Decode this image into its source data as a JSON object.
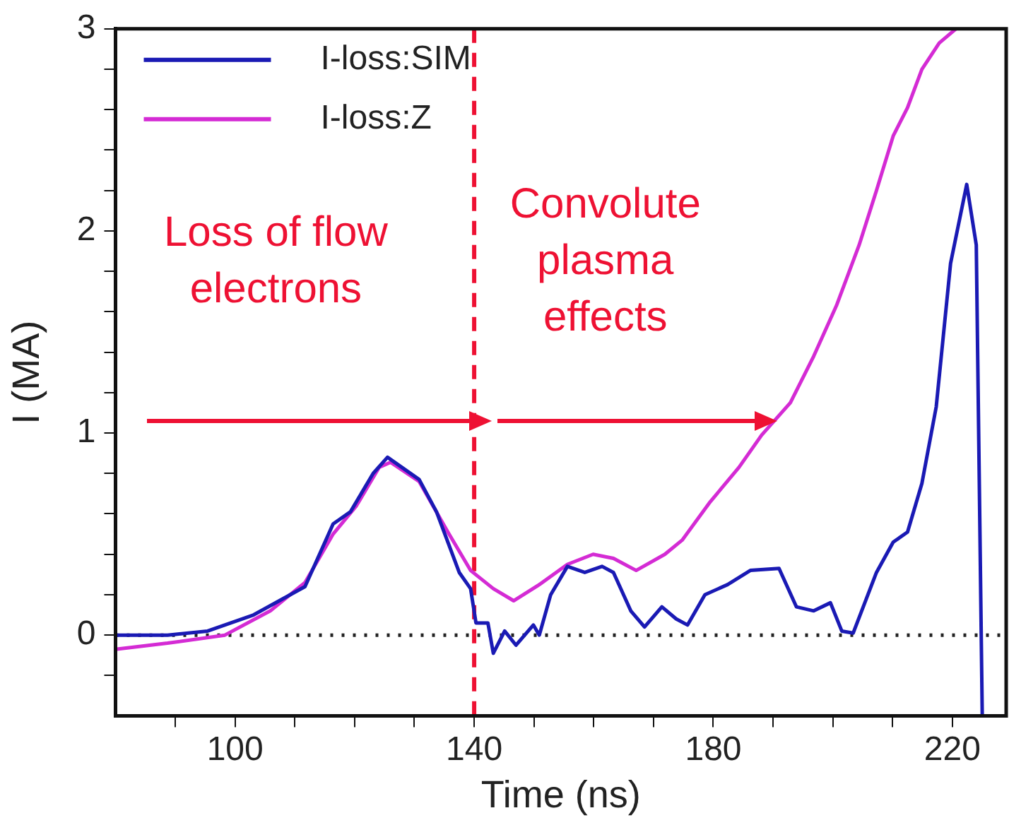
{
  "chart_data": {
    "type": "line",
    "xlabel": "Time (ns)",
    "ylabel": "I (MA)",
    "xlim": [
      80,
      229
    ],
    "ylim": [
      -0.4,
      3
    ],
    "xticks": [
      {
        "value": 90,
        "label": null
      },
      100,
      {
        "value": 110,
        "label": null
      },
      {
        "value": 120,
        "label": null
      },
      {
        "value": 130,
        "label": null
      },
      140,
      {
        "value": 150,
        "label": null
      },
      {
        "value": 160,
        "label": null
      },
      {
        "value": 170,
        "label": null
      },
      180,
      {
        "value": 190,
        "label": null
      },
      {
        "value": 200,
        "label": null
      },
      {
        "value": 210,
        "label": null
      },
      220
    ],
    "yticks": [
      {
        "value": -0.2,
        "label": null
      },
      0,
      {
        "value": 0.2,
        "label": null
      },
      {
        "value": 0.4,
        "label": null
      },
      {
        "value": 0.6,
        "label": null
      },
      {
        "value": 0.8,
        "label": null
      },
      1,
      {
        "value": 1.2,
        "label": null
      },
      {
        "value": 1.4,
        "label": null
      },
      {
        "value": 1.6,
        "label": null
      },
      {
        "value": 1.8,
        "label": null
      },
      2,
      {
        "value": 2.2,
        "label": null
      },
      {
        "value": 2.4,
        "label": null
      },
      {
        "value": 2.6,
        "label": null
      },
      {
        "value": 2.8,
        "label": null
      },
      3
    ],
    "grid": false,
    "legend": "top left",
    "marker": "none",
    "series": [
      {
        "name": "I-loss:SIM",
        "color": "#1a1ab4",
        "x": [
          80,
          88.7,
          95.4,
          103.1,
          111.7,
          116.4,
          119.3,
          123.1,
          125.5,
          130.8,
          133.7,
          137.5,
          139.4,
          140.3,
          142.3,
          143.2,
          145.1,
          147,
          149.9,
          150.9,
          152.8,
          155.6,
          158.5,
          161.4,
          163.3,
          166.2,
          168.5,
          171.4,
          173.8,
          175.7,
          178.6,
          182.4,
          186.2,
          191,
          193.9,
          196.8,
          199.6,
          201.5,
          203.4,
          207.3,
          210.1,
          212.5,
          214.9,
          217.3,
          219.7,
          222.4,
          224,
          225
        ],
        "values": [
          0,
          0,
          0.02,
          0.1,
          0.24,
          0.55,
          0.61,
          0.8,
          0.88,
          0.77,
          0.61,
          0.31,
          0.23,
          0.06,
          0.06,
          -0.09,
          0.02,
          -0.05,
          0.05,
          0,
          0.2,
          0.34,
          0.31,
          0.34,
          0.31,
          0.12,
          0.04,
          0.14,
          0.08,
          0.05,
          0.2,
          0.25,
          0.32,
          0.33,
          0.14,
          0.12,
          0.16,
          0.02,
          0.01,
          0.31,
          0.46,
          0.51,
          0.75,
          1.13,
          1.84,
          2.23,
          1.93,
          -0.4
        ]
      },
      {
        "name": "I-loss:Z",
        "color": "#d42bd4",
        "x": [
          80,
          88.7,
          98.3,
          105.9,
          111.7,
          116.4,
          120.3,
          124.1,
          126,
          130.8,
          135.6,
          139.4,
          143.2,
          146.6,
          150.9,
          155.6,
          159.9,
          163.3,
          167.1,
          171.9,
          174.8,
          179.5,
          184.3,
          188.1,
          192.9,
          196.8,
          200.6,
          204.4,
          207.3,
          210.1,
          212.5,
          214.9,
          217.8,
          220.6
        ],
        "values": [
          -0.07,
          -0.04,
          0,
          0.12,
          0.26,
          0.5,
          0.64,
          0.83,
          0.855,
          0.76,
          0.51,
          0.32,
          0.23,
          0.17,
          0.25,
          0.35,
          0.4,
          0.38,
          0.32,
          0.4,
          0.47,
          0.66,
          0.83,
          0.99,
          1.15,
          1.38,
          1.63,
          1.93,
          2.2,
          2.47,
          2.61,
          2.8,
          2.93,
          3
        ]
      }
    ],
    "ref_lines": [
      {
        "axis": "y",
        "value": 0,
        "color": "#222222",
        "line_style": "dotted"
      },
      {
        "axis": "x",
        "value": 140,
        "color": "#ee1133",
        "line_style": "dashed"
      }
    ],
    "annotations": [
      "Loss of flow electrons",
      "Convolute plasma effects"
    ]
  }
}
